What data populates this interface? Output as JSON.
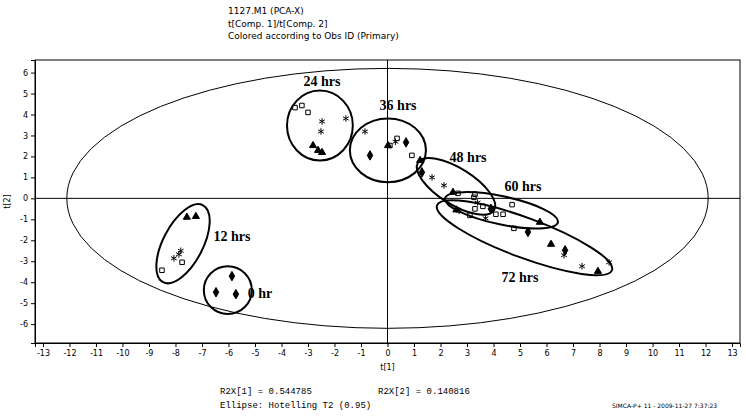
{
  "chart_data": {
    "type": "scatter",
    "title": "1127.M1 (PCA-X)",
    "subtitle": [
      "t[Comp. 1]/t[Comp. 2]",
      "Colored according to Obs ID (Primary)"
    ],
    "x_label": "t[1]",
    "y_label": "t[2]",
    "footer": [
      "R2X[1] = 0.544785",
      "R2X[2] = 0.140816",
      "Ellipse: Hotelling T2 (0.95)",
      "SIMCA-P+ 11 - 2009-11-27 7:37:23"
    ],
    "xlim": [
      -13.3,
      13.3
    ],
    "xticks": [
      -13,
      -12,
      -11,
      -10,
      -9,
      -8,
      -7,
      -6,
      -5,
      -4,
      -3,
      -2,
      -1,
      0,
      1,
      2,
      3,
      4,
      5,
      6,
      7,
      8,
      9,
      10,
      11,
      12,
      13
    ],
    "ylim": [
      -6.9,
      6.6
    ],
    "yticks": [
      -6,
      -5,
      -4,
      -3,
      -2,
      -1,
      0,
      1,
      2,
      3,
      4,
      5,
      6
    ],
    "reference_lines": {
      "x": 0,
      "y": 0
    },
    "ellipse": {
      "center": [
        0,
        0
      ],
      "x_radius": 12.1,
      "y_radius": 6.2
    },
    "series": [
      {
        "marker": "square",
        "color": "#000000",
        "x": [
          -3.49,
          -3.23,
          -3.0,
          0.36,
          0.92,
          0.09,
          -8.51,
          -7.75,
          2.66,
          3.26,
          3.3,
          3.6,
          4.36,
          4.7,
          3.11,
          4.09,
          4.77,
          3.3
        ],
        "values": [
          4.33,
          4.43,
          4.1,
          2.86,
          2.05,
          2.52,
          -3.43,
          -3.05,
          0.24,
          0.05,
          0.2,
          -0.38,
          -0.76,
          -0.3,
          -0.81,
          -0.76,
          -1.43,
          -0.5
        ]
      },
      {
        "marker": "star",
        "color": "#000000",
        "x": [
          -2.47,
          -2.51,
          -1.57,
          -0.85,
          0.3,
          -7.87,
          -8.06,
          -7.8,
          1.68,
          2.13,
          3.4,
          2.7,
          3.7,
          6.66,
          7.34,
          8.36
        ],
        "values": [
          3.67,
          3.19,
          3.81,
          3.19,
          2.7,
          -2.67,
          -2.86,
          -2.5,
          1.0,
          0.62,
          -0.2,
          -0.6,
          -0.95,
          -2.71,
          -3.24,
          -3.05
        ]
      },
      {
        "marker": "triangle",
        "color": "#000000",
        "x": [
          -2.81,
          -2.62,
          -2.47,
          0.02,
          1.23,
          -7.57,
          -7.23,
          2.47,
          5.75,
          2.6,
          6.17,
          7.94
        ],
        "values": [
          2.52,
          2.29,
          2.19,
          2.52,
          1.81,
          -0.9,
          -0.86,
          0.29,
          -1.14,
          -0.55,
          -2.19,
          -3.48
        ]
      },
      {
        "marker": "diamond",
        "color": "#000000",
        "x": [
          -5.87,
          -6.47,
          -5.72,
          0.7,
          -0.66,
          1.3,
          3.9,
          6.7,
          5.3
        ],
        "values": [
          -3.71,
          -4.48,
          -4.57,
          2.67,
          2.05,
          1.24,
          -0.5,
          -2.48,
          -1.6
        ]
      }
    ],
    "groups": [
      {
        "label": "0 hr",
        "label_x": -4.81,
        "label_y": -4.62,
        "ends": [
          [
            -6.93,
            -4.38
          ],
          [
            -5.12,
            -4.38
          ]
        ],
        "half_width": 1.14
      },
      {
        "label": "12 hrs",
        "label_x": -5.87,
        "label_y": -1.9,
        "ends": [
          [
            -8.47,
            -4.0
          ],
          [
            -6.96,
            -0.33
          ]
        ],
        "half_width": 0.95
      },
      {
        "label": "24 hrs",
        "label_x": -2.47,
        "label_y": 5.52,
        "ends": [
          [
            -2.55,
            5.14
          ],
          [
            -2.55,
            1.81
          ]
        ],
        "half_width": 1.57
      },
      {
        "label": "36 hrs",
        "label_x": 0.4,
        "label_y": 4.38,
        "ends": [
          [
            -1.42,
            2.29
          ],
          [
            1.45,
            2.29
          ]
        ],
        "half_width": 1.52
      },
      {
        "label": "48 hrs",
        "label_x": 3.04,
        "label_y": 1.9,
        "ends": [
          [
            1.15,
            1.71
          ],
          [
            4.02,
            -0.57
          ]
        ],
        "half_width": 0.86
      },
      {
        "label": "60 hrs",
        "label_x": 5.11,
        "label_y": 0.52,
        "ends": [
          [
            2.17,
            0.0
          ],
          [
            6.43,
            -1.14
          ]
        ],
        "half_width": 0.67
      },
      {
        "label": "72 hrs",
        "label_x": 5.0,
        "label_y": -3.86,
        "ends": [
          [
            1.87,
            -0.33
          ],
          [
            8.47,
            -3.43
          ]
        ],
        "half_width": 0.95
      }
    ]
  }
}
